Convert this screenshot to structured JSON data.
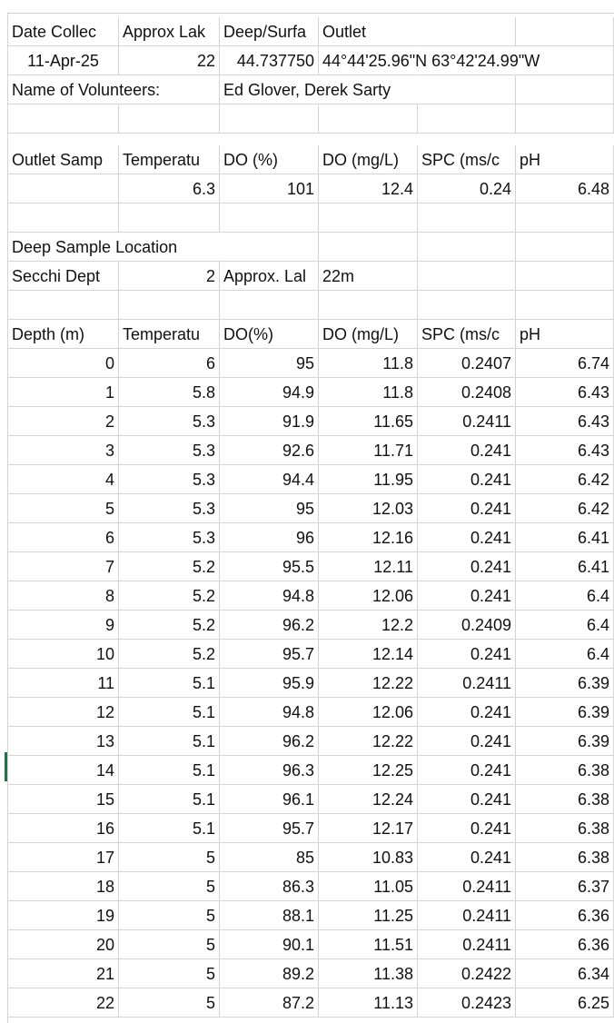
{
  "info": {
    "headers": [
      "Date Collec",
      "Approx Lak",
      "Deep/Surfa",
      "Outlet"
    ],
    "date": "11-Apr-25",
    "approx_lake_depth": "22",
    "deep_coord": "44.737750",
    "outlet_coord": "44°44'25.96\"N 63°42'24.99\"W",
    "volunteers_label": "Name of Volunteers:",
    "volunteers_names": "Ed Glover, Derek Sarty"
  },
  "outlet": {
    "headers": [
      "Outlet Samp",
      "Temperatu",
      "DO (%)",
      "DO (mg/L)",
      "SPC (ms/c",
      "pH"
    ],
    "values": [
      "",
      "6.3",
      "101",
      "12.4",
      "0.24",
      "6.48"
    ]
  },
  "deep": {
    "location_label": "Deep Sample Location",
    "secchi_label": "Secchi Dept",
    "secchi_value": "2",
    "approx_label": "Approx. Lal",
    "approx_value": "22m"
  },
  "profile": {
    "headers": [
      "Depth (m)",
      "Temperatu",
      "DO(%)",
      "DO (mg/L)",
      "SPC (ms/c",
      "pH"
    ],
    "rows": [
      [
        "0",
        "6",
        "95",
        "11.8",
        "0.2407",
        "6.74"
      ],
      [
        "1",
        "5.8",
        "94.9",
        "11.8",
        "0.2408",
        "6.43"
      ],
      [
        "2",
        "5.3",
        "91.9",
        "11.65",
        "0.2411",
        "6.43"
      ],
      [
        "3",
        "5.3",
        "92.6",
        "11.71",
        "0.241",
        "6.43"
      ],
      [
        "4",
        "5.3",
        "94.4",
        "11.95",
        "0.241",
        "6.42"
      ],
      [
        "5",
        "5.3",
        "95",
        "12.03",
        "0.241",
        "6.42"
      ],
      [
        "6",
        "5.3",
        "96",
        "12.16",
        "0.241",
        "6.41"
      ],
      [
        "7",
        "5.2",
        "95.5",
        "12.11",
        "0.241",
        "6.41"
      ],
      [
        "8",
        "5.2",
        "94.8",
        "12.06",
        "0.241",
        "6.4"
      ],
      [
        "9",
        "5.2",
        "96.2",
        "12.2",
        "0.2409",
        "6.4"
      ],
      [
        "10",
        "5.2",
        "95.7",
        "12.14",
        "0.241",
        "6.4"
      ],
      [
        "11",
        "5.1",
        "95.9",
        "12.22",
        "0.2411",
        "6.39"
      ],
      [
        "12",
        "5.1",
        "94.8",
        "12.06",
        "0.241",
        "6.39"
      ],
      [
        "13",
        "5.1",
        "96.2",
        "12.22",
        "0.241",
        "6.39"
      ],
      [
        "14",
        "5.1",
        "96.3",
        "12.25",
        "0.241",
        "6.38"
      ],
      [
        "15",
        "5.1",
        "96.1",
        "12.24",
        "0.241",
        "6.38"
      ],
      [
        "16",
        "5.1",
        "95.7",
        "12.17",
        "0.241",
        "6.38"
      ],
      [
        "17",
        "5",
        "85",
        "10.83",
        "0.241",
        "6.38"
      ],
      [
        "18",
        "5",
        "86.3",
        "11.05",
        "0.2411",
        "6.37"
      ],
      [
        "19",
        "5",
        "88.1",
        "11.25",
        "0.2411",
        "6.36"
      ],
      [
        "20",
        "5",
        "90.1",
        "11.51",
        "0.2411",
        "6.36"
      ],
      [
        "21",
        "5",
        "89.2",
        "11.38",
        "0.2422",
        "6.34"
      ],
      [
        "22",
        "5",
        "87.2",
        "11.13",
        "0.2423",
        "6.25"
      ]
    ]
  }
}
